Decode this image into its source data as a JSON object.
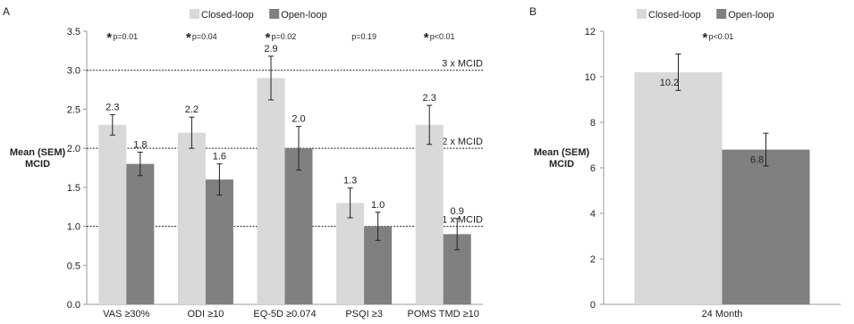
{
  "chart_data": [
    {
      "panel": "A",
      "type": "bar",
      "ylabel": "Mean (SEM)\nMCID",
      "ylim": [
        0,
        3.5
      ],
      "ytick_step": 0.5,
      "ytick_labels": [
        "0.0",
        "0.5",
        "1.0",
        "1.5",
        "2.0",
        "2.5",
        "3.0",
        "3.5"
      ],
      "categories": [
        "VAS ≥30%",
        "ODI ≥10",
        "EQ-5D ≥0.074",
        "PSQI ≥3",
        "POMS TMD ≥10"
      ],
      "series": [
        {
          "name": "Closed-loop",
          "color": "#d9d9d9",
          "values": [
            2.3,
            2.2,
            2.9,
            1.3,
            2.3
          ],
          "sem": [
            0.13,
            0.2,
            0.28,
            0.19,
            0.25
          ],
          "labels": [
            "2.3",
            "2.2",
            "2.9",
            "1.3",
            "2.3"
          ]
        },
        {
          "name": "Open-loop",
          "color": "#808080",
          "values": [
            1.8,
            1.6,
            2.0,
            1.0,
            0.9
          ],
          "sem": [
            0.15,
            0.2,
            0.28,
            0.18,
            0.2
          ],
          "labels": [
            "1.8",
            "1.6",
            "2.0",
            "1.0",
            "0.9"
          ]
        }
      ],
      "pvalues": [
        {
          "star": true,
          "text": "p=0.01"
        },
        {
          "star": true,
          "text": "p=0.04"
        },
        {
          "star": true,
          "text": "p=0.02"
        },
        {
          "star": false,
          "text": "p=0.19"
        },
        {
          "star": true,
          "text": "p<0.01"
        }
      ],
      "reference_lines": [
        {
          "value": 1.0,
          "label": "1 x MCID"
        },
        {
          "value": 2.0,
          "label": "2 x MCID"
        },
        {
          "value": 3.0,
          "label": "3 x MCID"
        }
      ],
      "legend": "top"
    },
    {
      "panel": "B",
      "type": "bar",
      "ylabel": "Mean (SEM)\nMCID",
      "ylim": [
        0,
        12
      ],
      "ytick_step": 2,
      "ytick_labels": [
        "0",
        "2",
        "4",
        "6",
        "8",
        "10",
        "12"
      ],
      "categories": [
        "24 Month"
      ],
      "series": [
        {
          "name": "Closed-loop",
          "color": "#d9d9d9",
          "values": [
            10.2
          ],
          "sem": [
            0.8
          ],
          "labels": [
            "10.2"
          ]
        },
        {
          "name": "Open-loop",
          "color": "#808080",
          "values": [
            6.8
          ],
          "sem": [
            0.72
          ],
          "labels": [
            "6.8"
          ]
        }
      ],
      "pvalues": [
        {
          "star": true,
          "text": "p<0.01"
        }
      ],
      "reference_lines": [],
      "legend": "top"
    }
  ]
}
